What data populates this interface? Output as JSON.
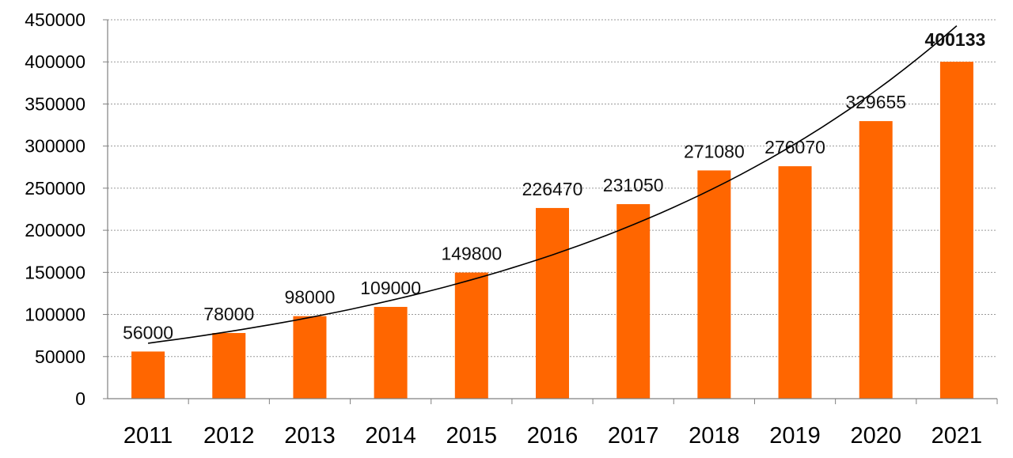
{
  "chart_data": {
    "type": "bar",
    "title": "",
    "xlabel": "",
    "ylabel": "",
    "categories": [
      "2011",
      "2012",
      "2013",
      "2014",
      "2015",
      "2016",
      "2017",
      "2018",
      "2019",
      "2020",
      "2021"
    ],
    "values": [
      56000,
      78000,
      98000,
      109000,
      149800,
      226470,
      231050,
      271080,
      276070,
      329655,
      400133
    ],
    "data_labels": [
      "56000",
      "78000",
      "98000",
      "109000",
      "149800",
      "226470",
      "231050",
      "271080",
      "276070",
      "329655",
      "400133"
    ],
    "ylim": [
      0,
      450000
    ],
    "yticks": [
      0,
      50000,
      100000,
      150000,
      200000,
      250000,
      300000,
      350000,
      400000,
      450000
    ],
    "ytick_labels": [
      "0",
      "50000",
      "100000",
      "150000",
      "200000",
      "250000",
      "300000",
      "350000",
      "400000",
      "450000"
    ],
    "grid": "horizontal dotted",
    "legend": "none",
    "bar_color": "#FF6600",
    "trendline": {
      "type": "exponential",
      "color": "#000000"
    }
  }
}
